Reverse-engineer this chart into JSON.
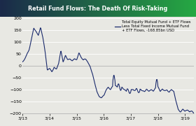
{
  "title": "Retail Fund Flows: The Death Of Risk-Taking",
  "title_bg_left": "#1b2a4a",
  "title_bg_right": "#26a843",
  "legend_label": "Total Equity Mutual Fund + ETF Flows\nLess Total Fixed Income Mutual Fund\n+ ETF Flows, -168.85bn USD",
  "line_color": "#1a2a6c",
  "line_width": 0.8,
  "x_tick_labels": [
    "3/13",
    "3/14",
    "3/15",
    "3/16",
    "3/17",
    "3/18",
    "3/19"
  ],
  "ylim": [
    -200,
    200
  ],
  "yticks": [
    -200,
    -150,
    -100,
    -50,
    0,
    50,
    100,
    150,
    200
  ],
  "bg_color": "#e8e8e3",
  "plot_bg": "#e8e8e3",
  "grid_color": "#ffffff",
  "spine_color": "#aaaaaa"
}
